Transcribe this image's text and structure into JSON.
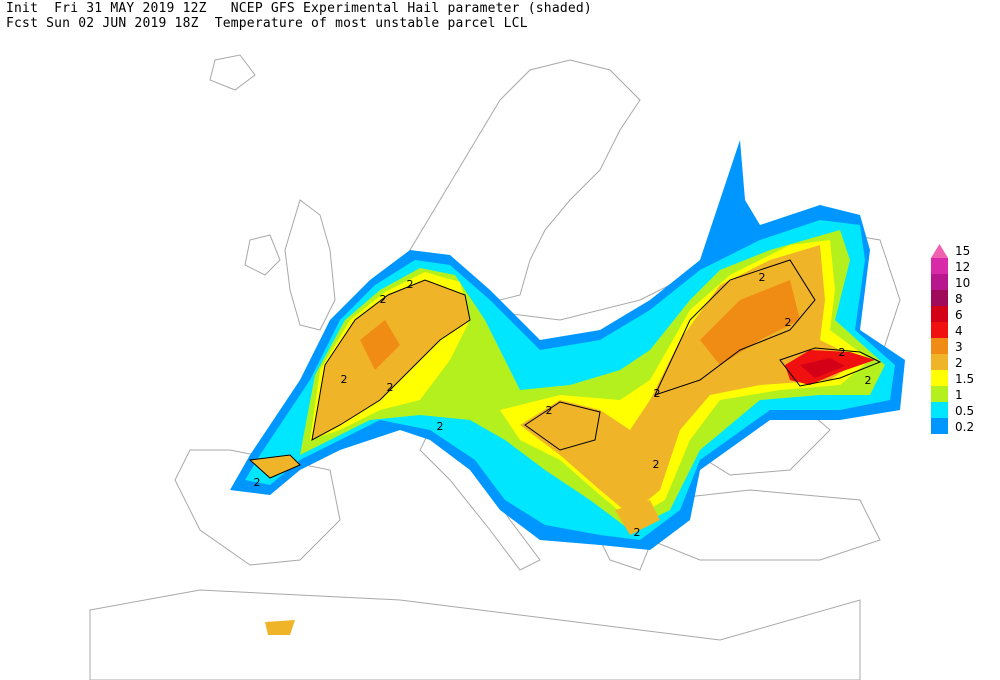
{
  "header": {
    "line1": "Init  Fri 31 MAY 2019 12Z   NCEP GFS Experimental Hail parameter (shaded)",
    "line2": "Fcst Sun 02 JUN 2019 18Z  Temperature of most unstable parcel LCL"
  },
  "legend": {
    "levels": [
      {
        "label": "15",
        "color": "#f060b0"
      },
      {
        "label": "12",
        "color": "#d82aa8"
      },
      {
        "label": "10",
        "color": "#b8168c"
      },
      {
        "label": "8",
        "color": "#a00a5a"
      },
      {
        "label": "6",
        "color": "#d40018"
      },
      {
        "label": "4",
        "color": "#f01010"
      },
      {
        "label": "3",
        "color": "#f08c14"
      },
      {
        "label": "2",
        "color": "#f0b428"
      },
      {
        "label": "1.5",
        "color": "#ffff00"
      },
      {
        "label": "1",
        "color": "#b4f01e"
      },
      {
        "label": "0.5",
        "color": "#00e6ff"
      },
      {
        "label": "0.2",
        "color": "#0096ff"
      }
    ]
  },
  "contour_labels": [
    "2",
    "2",
    "2",
    "2",
    "2",
    "2",
    "2",
    "2",
    "2",
    "2",
    "2",
    "2",
    "2",
    "2"
  ]
}
